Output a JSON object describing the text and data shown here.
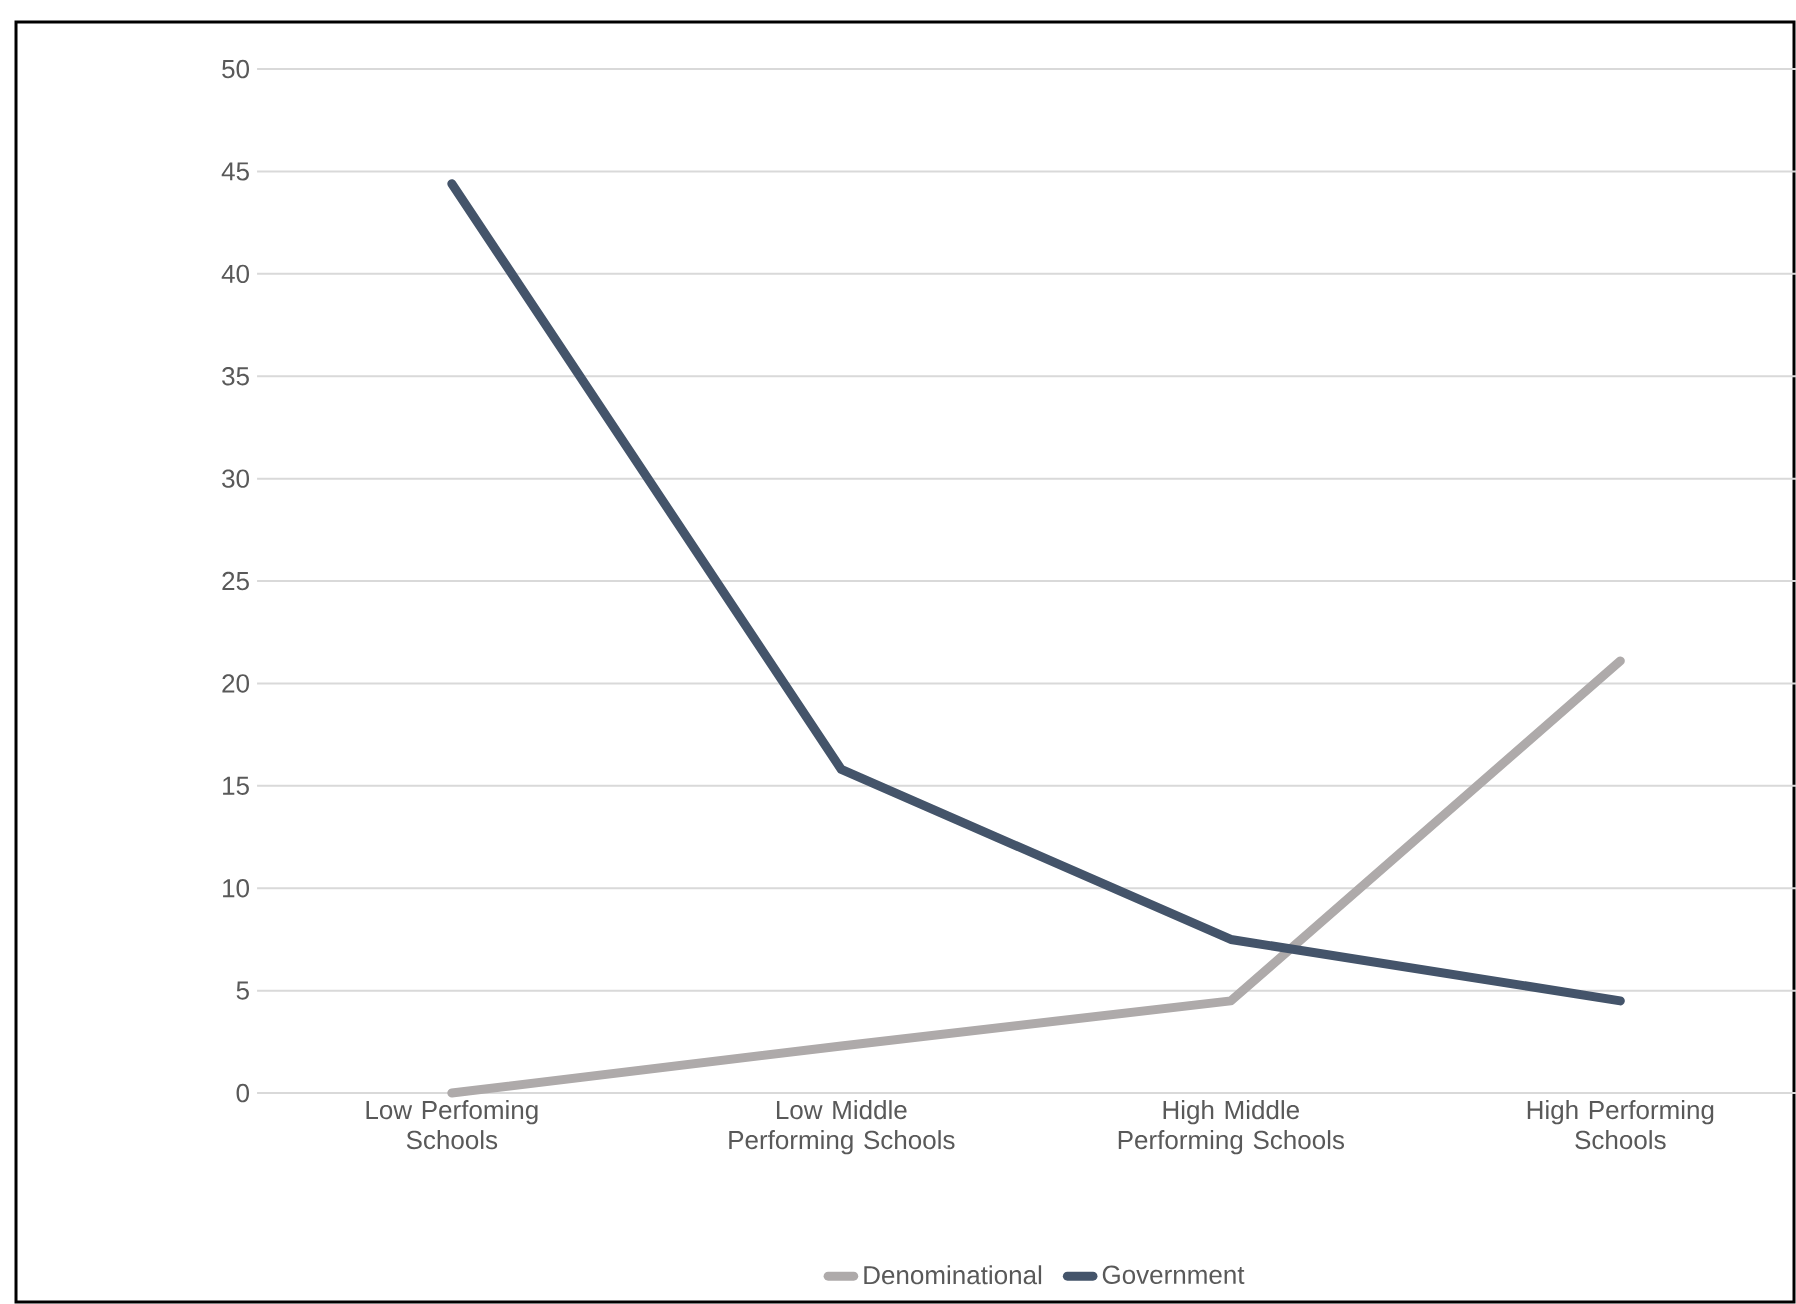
{
  "chart_data": {
    "type": "line",
    "categories": [
      "Low Perfoming Schools",
      "Low Middle Performing Schools",
      "High Middle Performing Schools",
      "High Performing Schools"
    ],
    "series": [
      {
        "name": "Denominational",
        "color": "#aeaaaa",
        "values": [
          0,
          2.3,
          4.5,
          21.1
        ]
      },
      {
        "name": "Government",
        "color": "#44546a",
        "values": [
          44.4,
          15.8,
          7.5,
          4.5
        ]
      }
    ],
    "ylim": [
      0,
      50
    ],
    "yticks": [
      0,
      5,
      10,
      15,
      20,
      25,
      30,
      35,
      40,
      45,
      50
    ],
    "grid": "y",
    "legend": "bottom",
    "marker": "none",
    "line_style": "solid"
  }
}
